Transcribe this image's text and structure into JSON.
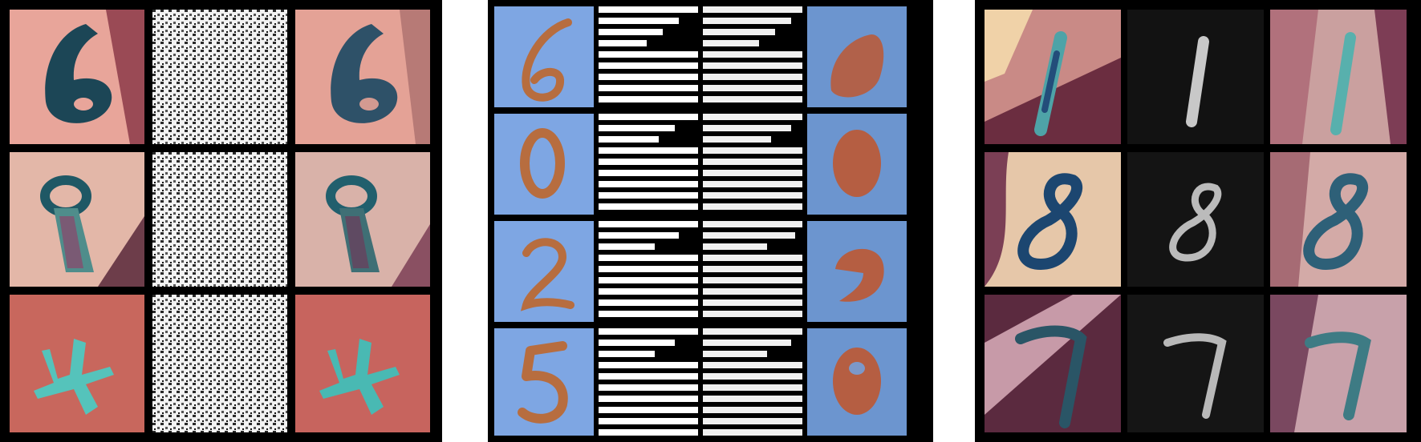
{
  "panels": [
    {
      "id": "panel-1",
      "rows": [
        {
          "digit": "6",
          "bg": "#e8a59a",
          "ink": "#1c4656",
          "bg_dark": "#9a4a55"
        },
        {
          "digit": "8",
          "bg": "#e3b7a8",
          "ink": "#1f5865",
          "bg_dark": "#6d3d4a"
        },
        {
          "digit": "4",
          "bg": "#c8675d",
          "ink": "#55c3bb",
          "bg_dark": "#a24d48"
        }
      ]
    },
    {
      "id": "panel-2",
      "rows": [
        {
          "digit": "6",
          "bg": "#7ea6e3",
          "ink": "#b76d3f"
        },
        {
          "digit": "0",
          "bg": "#7ea6e3",
          "ink": "#b76d3f"
        },
        {
          "digit": "2",
          "bg": "#7ea6e3",
          "ink": "#b76d3f"
        },
        {
          "digit": "5",
          "bg": "#7ea6e3",
          "ink": "#b76d3f"
        }
      ]
    },
    {
      "id": "panel-3",
      "rows": [
        {
          "digit": "1",
          "bg": "#c98a86",
          "ink": "#4ea3a7",
          "bg_dark": "#6b2d40"
        },
        {
          "digit": "8",
          "bg": "#e6c7a9",
          "ink": "#1c4670",
          "bg_dark": "#7b3f55"
        },
        {
          "digit": "7",
          "bg": "#c79aa8",
          "ink": "#2a5566",
          "bg_dark": "#5b2a3f"
        }
      ]
    }
  ]
}
